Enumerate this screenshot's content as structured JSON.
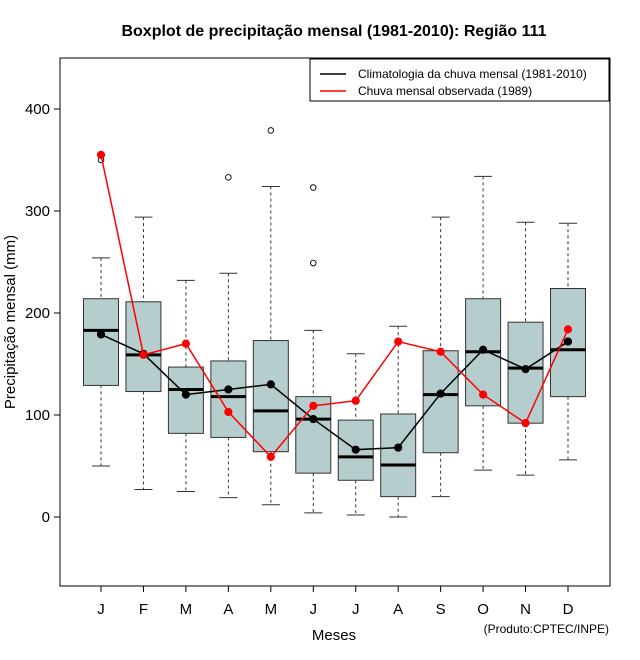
{
  "chart_data": {
    "type": "boxplot",
    "title": "Boxplot de precipitação mensal (1981-2010): Região 111",
    "xlabel": "Meses",
    "ylabel": "Precipitação mensal (mm)",
    "ylim": [
      -68,
      450
    ],
    "yticks": [
      0,
      100,
      200,
      300,
      400
    ],
    "categories": [
      "J",
      "F",
      "M",
      "A",
      "M",
      "J",
      "J",
      "A",
      "S",
      "O",
      "N",
      "D"
    ],
    "boxes": [
      {
        "whisker_low": 50,
        "q1": 129,
        "median": 183,
        "q3": 214,
        "whisker_high": 254,
        "outliers": [
          350
        ]
      },
      {
        "whisker_low": 27,
        "q1": 123,
        "median": 159,
        "q3": 211,
        "whisker_high": 294,
        "outliers": []
      },
      {
        "whisker_low": 25,
        "q1": 82,
        "median": 125,
        "q3": 147,
        "whisker_high": 232,
        "outliers": []
      },
      {
        "whisker_low": 19,
        "q1": 78,
        "median": 118,
        "q3": 153,
        "whisker_high": 239,
        "outliers": [
          333
        ]
      },
      {
        "whisker_low": 12,
        "q1": 64,
        "median": 104,
        "q3": 173,
        "whisker_high": 324,
        "outliers": [
          379
        ]
      },
      {
        "whisker_low": 4,
        "q1": 43,
        "median": 96,
        "q3": 118,
        "whisker_high": 183,
        "outliers": [
          249,
          323
        ]
      },
      {
        "whisker_low": 2,
        "q1": 36,
        "median": 59,
        "q3": 95,
        "whisker_high": 160,
        "outliers": []
      },
      {
        "whisker_low": 0,
        "q1": 20,
        "median": 51,
        "q3": 101,
        "whisker_high": 187,
        "outliers": []
      },
      {
        "whisker_low": 20,
        "q1": 63,
        "median": 120,
        "q3": 163,
        "whisker_high": 294,
        "outliers": []
      },
      {
        "whisker_low": 46,
        "q1": 109,
        "median": 162,
        "q3": 214,
        "whisker_high": 334,
        "outliers": []
      },
      {
        "whisker_low": 41,
        "q1": 92,
        "median": 146,
        "q3": 191,
        "whisker_high": 289,
        "outliers": []
      },
      {
        "whisker_low": 56,
        "q1": 118,
        "median": 164,
        "q3": 224,
        "whisker_high": 288,
        "outliers": []
      }
    ],
    "series": [
      {
        "name": "Climatologia da chuva mensal (1981-2010)",
        "color": "#000000",
        "values": [
          179,
          160,
          120,
          125,
          130,
          96,
          66,
          68,
          121,
          164,
          145,
          172
        ]
      },
      {
        "name": "Chuva mensal observada (1989)",
        "color": "#ff0000",
        "values": [
          355,
          159,
          170,
          103,
          59,
          109,
          114,
          172,
          162,
          120,
          92,
          184
        ]
      }
    ],
    "box_fill": "#b5cdcd",
    "legend_position": "top-right",
    "credit": "(Produto:CPTEC/INPE)"
  }
}
